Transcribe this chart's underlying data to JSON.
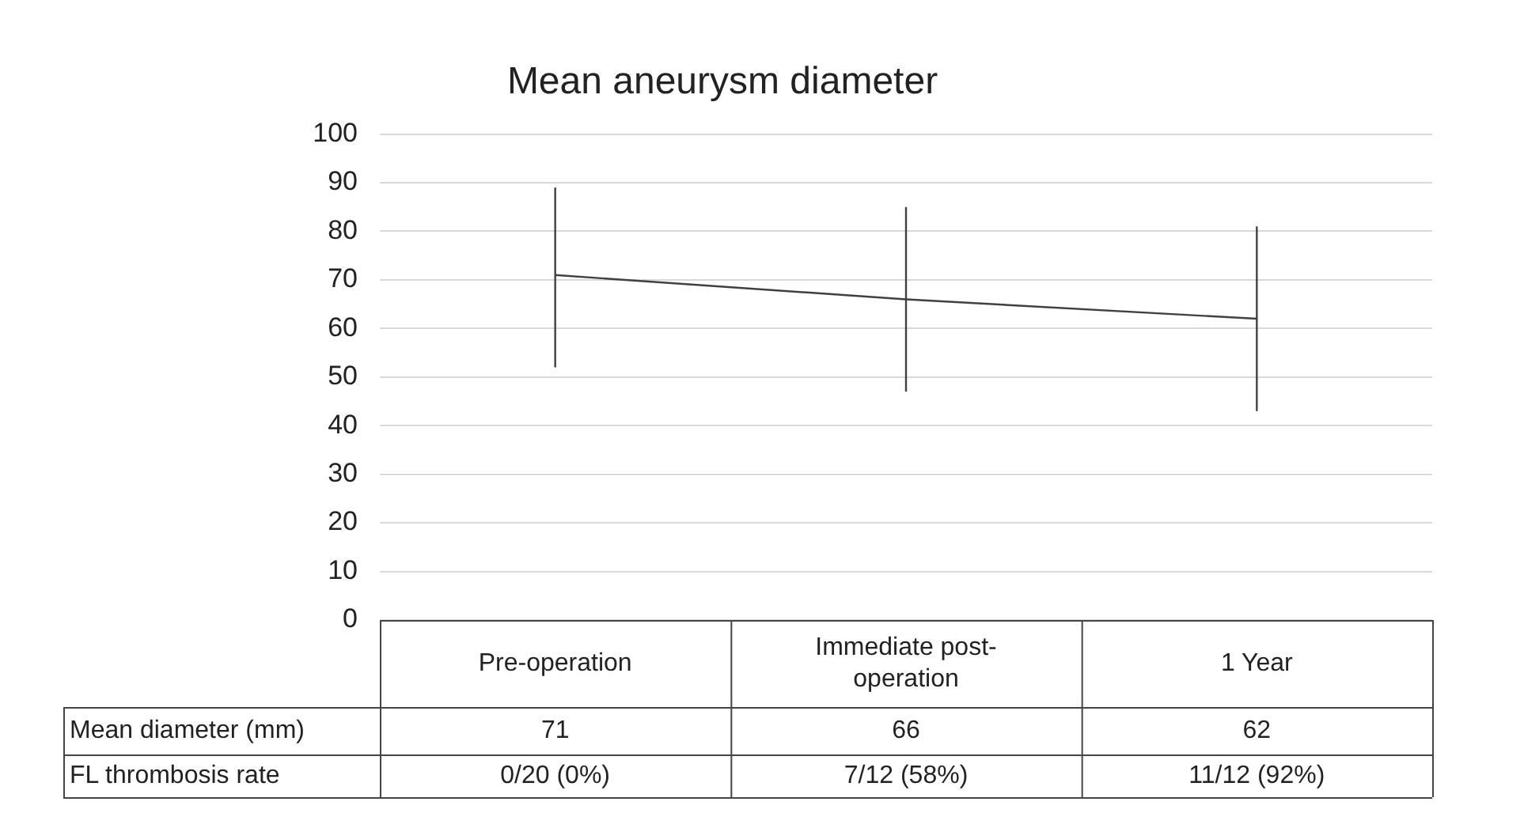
{
  "chart_data": {
    "type": "line",
    "title": "Mean aneurysm diameter",
    "categories": [
      "Pre-operation",
      "Immediate post-operation",
      "1 Year"
    ],
    "series": [
      {
        "name": "Mean diameter (mm)",
        "color": "#404040",
        "values": [
          71,
          66,
          62
        ],
        "errors": [
          [
            52,
            89
          ],
          [
            47,
            85
          ],
          [
            43,
            81
          ]
        ]
      }
    ],
    "ylim": [
      0,
      100
    ],
    "yticks": [
      0,
      10,
      20,
      30,
      40,
      50,
      60,
      70,
      80,
      90,
      100
    ],
    "grid": "y",
    "legend": false,
    "marker": "none",
    "line_style": "solid",
    "data_labels": true,
    "annotations": [
      "FL thrombosis rate",
      "0/20 (0%)",
      "7/12 (58%)",
      "11/12 (92%)"
    ]
  }
}
